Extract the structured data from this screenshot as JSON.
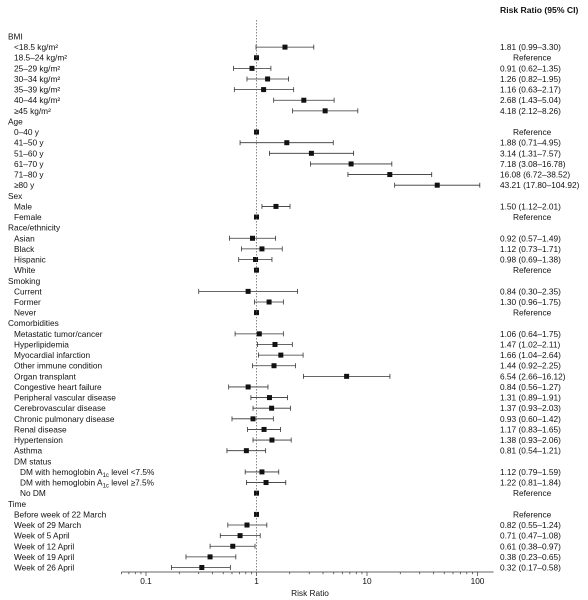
{
  "chart_data": {
    "type": "forest",
    "column_header": "Risk Ratio (95% CI)",
    "xlabel": "Risk Ratio",
    "x_scale": "log",
    "xlim": [
      0.06,
      140
    ],
    "x_ticks": [
      0.1,
      1,
      10,
      100
    ],
    "x_tick_labels": [
      "0.1",
      "1",
      "10",
      "100"
    ],
    "reference_line": 1,
    "rows": [
      {
        "kind": "header",
        "label": "BMI"
      },
      {
        "kind": "item",
        "label": "<18.5 kg/m²",
        "rr": 1.81,
        "lo": 0.99,
        "hi": 3.3,
        "text": "1.81 (0.99–3.30)"
      },
      {
        "kind": "item",
        "label": "18.5–24 kg/m²",
        "rr": 1,
        "text": "Reference"
      },
      {
        "kind": "item",
        "label": "25–29 kg/m²",
        "rr": 0.91,
        "lo": 0.62,
        "hi": 1.35,
        "text": "0.91 (0.62–1.35)"
      },
      {
        "kind": "item",
        "label": "30–34 kg/m²",
        "rr": 1.26,
        "lo": 0.82,
        "hi": 1.95,
        "text": "1.26 (0.82–1.95)"
      },
      {
        "kind": "item",
        "label": "35–39 kg/m²",
        "rr": 1.16,
        "lo": 0.63,
        "hi": 2.17,
        "text": "1.16 (0.63–2.17)"
      },
      {
        "kind": "item",
        "label": "40–44 kg/m²",
        "rr": 2.68,
        "lo": 1.43,
        "hi": 5.04,
        "text": "2.68 (1.43–5.04)"
      },
      {
        "kind": "item",
        "label": "≥45 kg/m²",
        "rr": 4.18,
        "lo": 2.12,
        "hi": 8.26,
        "text": "4.18 (2.12–8.26)"
      },
      {
        "kind": "header",
        "label": "Age"
      },
      {
        "kind": "item",
        "label": "0–40 y",
        "rr": 1,
        "text": "Reference"
      },
      {
        "kind": "item",
        "label": "41–50 y",
        "rr": 1.88,
        "lo": 0.71,
        "hi": 4.95,
        "text": "1.88 (0.71–4.95)"
      },
      {
        "kind": "item",
        "label": "51–60 y",
        "rr": 3.14,
        "lo": 1.31,
        "hi": 7.57,
        "text": "3.14 (1.31–7.57)"
      },
      {
        "kind": "item",
        "label": "61–70 y",
        "rr": 7.18,
        "lo": 3.08,
        "hi": 16.78,
        "text": "7.18 (3.08–16.78)"
      },
      {
        "kind": "item",
        "label": "71–80 y",
        "rr": 16.08,
        "lo": 6.72,
        "hi": 38.52,
        "text": "16.08 (6.72–38.52)"
      },
      {
        "kind": "item",
        "label": "≥80 y",
        "rr": 43.21,
        "lo": 17.8,
        "hi": 104.92,
        "text": "43.21 (17.80–104.92)"
      },
      {
        "kind": "header",
        "label": "Sex"
      },
      {
        "kind": "item",
        "label": "Male",
        "rr": 1.5,
        "lo": 1.12,
        "hi": 2.01,
        "text": "1.50 (1.12–2.01)"
      },
      {
        "kind": "item",
        "label": "Female",
        "rr": 1,
        "text": "Reference"
      },
      {
        "kind": "header",
        "label": "Race/ethnicity"
      },
      {
        "kind": "item",
        "label": "Asian",
        "rr": 0.92,
        "lo": 0.57,
        "hi": 1.49,
        "text": "0.92 (0.57–1.49)"
      },
      {
        "kind": "item",
        "label": "Black",
        "rr": 1.12,
        "lo": 0.73,
        "hi": 1.71,
        "text": "1.12 (0.73–1.71)"
      },
      {
        "kind": "item",
        "label": "Hispanic",
        "rr": 0.98,
        "lo": 0.69,
        "hi": 1.38,
        "text": "0.98 (0.69–1.38)"
      },
      {
        "kind": "item",
        "label": "White",
        "rr": 1,
        "text": "Reference"
      },
      {
        "kind": "header",
        "label": "Smoking"
      },
      {
        "kind": "item",
        "label": "Current",
        "rr": 0.84,
        "lo": 0.3,
        "hi": 2.35,
        "text": "0.84 (0.30–2.35)"
      },
      {
        "kind": "item",
        "label": "Former",
        "rr": 1.3,
        "lo": 0.96,
        "hi": 1.75,
        "text": "1.30 (0.96–1.75)"
      },
      {
        "kind": "item",
        "label": "Never",
        "rr": 1,
        "text": "Reference"
      },
      {
        "kind": "header",
        "label": "Comorbidities"
      },
      {
        "kind": "item",
        "label": "Metastatic tumor/cancer",
        "rr": 1.06,
        "lo": 0.64,
        "hi": 1.75,
        "text": "1.06 (0.64–1.75)"
      },
      {
        "kind": "item",
        "label": "Hyperlipidemia",
        "rr": 1.47,
        "lo": 1.02,
        "hi": 2.11,
        "text": "1.47 (1.02–2.11)"
      },
      {
        "kind": "item",
        "label": "Myocardial infarction",
        "rr": 1.66,
        "lo": 1.04,
        "hi": 2.64,
        "text": "1.66 (1.04–2.64)"
      },
      {
        "kind": "item",
        "label": "Other immune condition",
        "rr": 1.44,
        "lo": 0.92,
        "hi": 2.25,
        "text": "1.44 (0.92–2.25)"
      },
      {
        "kind": "item",
        "label": "Organ transplant",
        "rr": 6.54,
        "lo": 2.66,
        "hi": 16.12,
        "text": "6.54 (2.66–16.12)"
      },
      {
        "kind": "item",
        "label": "Congestive heart failure",
        "rr": 0.84,
        "lo": 0.56,
        "hi": 1.27,
        "text": "0.84 (0.56–1.27)"
      },
      {
        "kind": "item",
        "label": "Peripheral vascular disease",
        "rr": 1.31,
        "lo": 0.89,
        "hi": 1.91,
        "text": "1.31 (0.89–1.91)"
      },
      {
        "kind": "item",
        "label": "Cerebrovascular disease",
        "rr": 1.37,
        "lo": 0.93,
        "hi": 2.03,
        "text": "1.37 (0.93–2.03)"
      },
      {
        "kind": "item",
        "label": "Chronic pulmonary disease",
        "rr": 0.93,
        "lo": 0.6,
        "hi": 1.42,
        "text": "0.93 (0.60–1.42)"
      },
      {
        "kind": "item",
        "label": "Renal disease",
        "rr": 1.17,
        "lo": 0.83,
        "hi": 1.65,
        "text": "1.17 (0.83–1.65)"
      },
      {
        "kind": "item",
        "label": "Hypertension",
        "rr": 1.38,
        "lo": 0.93,
        "hi": 2.06,
        "text": "1.38 (0.93–2.06)"
      },
      {
        "kind": "item",
        "label": "Asthma",
        "rr": 0.81,
        "lo": 0.54,
        "hi": 1.21,
        "text": "0.81 (0.54–1.21)"
      },
      {
        "kind": "subheader",
        "label": "DM status"
      },
      {
        "kind": "subitem",
        "label": "DM with hemoglobin A1c level <7.5%",
        "rr": 1.12,
        "lo": 0.79,
        "hi": 1.59,
        "text": "1.12 (0.79–1.59)"
      },
      {
        "kind": "subitem",
        "label": "DM with hemoglobin A1c level ≥7.5%",
        "rr": 1.22,
        "lo": 0.81,
        "hi": 1.84,
        "text": "1.22 (0.81–1.84)"
      },
      {
        "kind": "subitem",
        "label": "No DM",
        "rr": 1,
        "text": "Reference"
      },
      {
        "kind": "header",
        "label": "Time"
      },
      {
        "kind": "item",
        "label": "Before week of 22 March",
        "rr": 1,
        "text": "Reference"
      },
      {
        "kind": "item",
        "label": "Week of 29 March",
        "rr": 0.82,
        "lo": 0.55,
        "hi": 1.24,
        "text": "0.82 (0.55–1.24)"
      },
      {
        "kind": "item",
        "label": "Week of 5 April",
        "rr": 0.71,
        "lo": 0.47,
        "hi": 1.08,
        "text": "0.71 (0.47–1.08)"
      },
      {
        "kind": "item",
        "label": "Week of 12 April",
        "rr": 0.61,
        "lo": 0.38,
        "hi": 0.97,
        "text": "0.61 (0.38–0.97)"
      },
      {
        "kind": "item",
        "label": "Week of 19 April",
        "rr": 0.38,
        "lo": 0.23,
        "hi": 0.65,
        "text": "0.38 (0.23–0.65)"
      },
      {
        "kind": "item",
        "label": "Week of 26 April",
        "rr": 0.32,
        "lo": 0.17,
        "hi": 0.58,
        "text": "0.32 (0.17–0.58)"
      }
    ]
  }
}
